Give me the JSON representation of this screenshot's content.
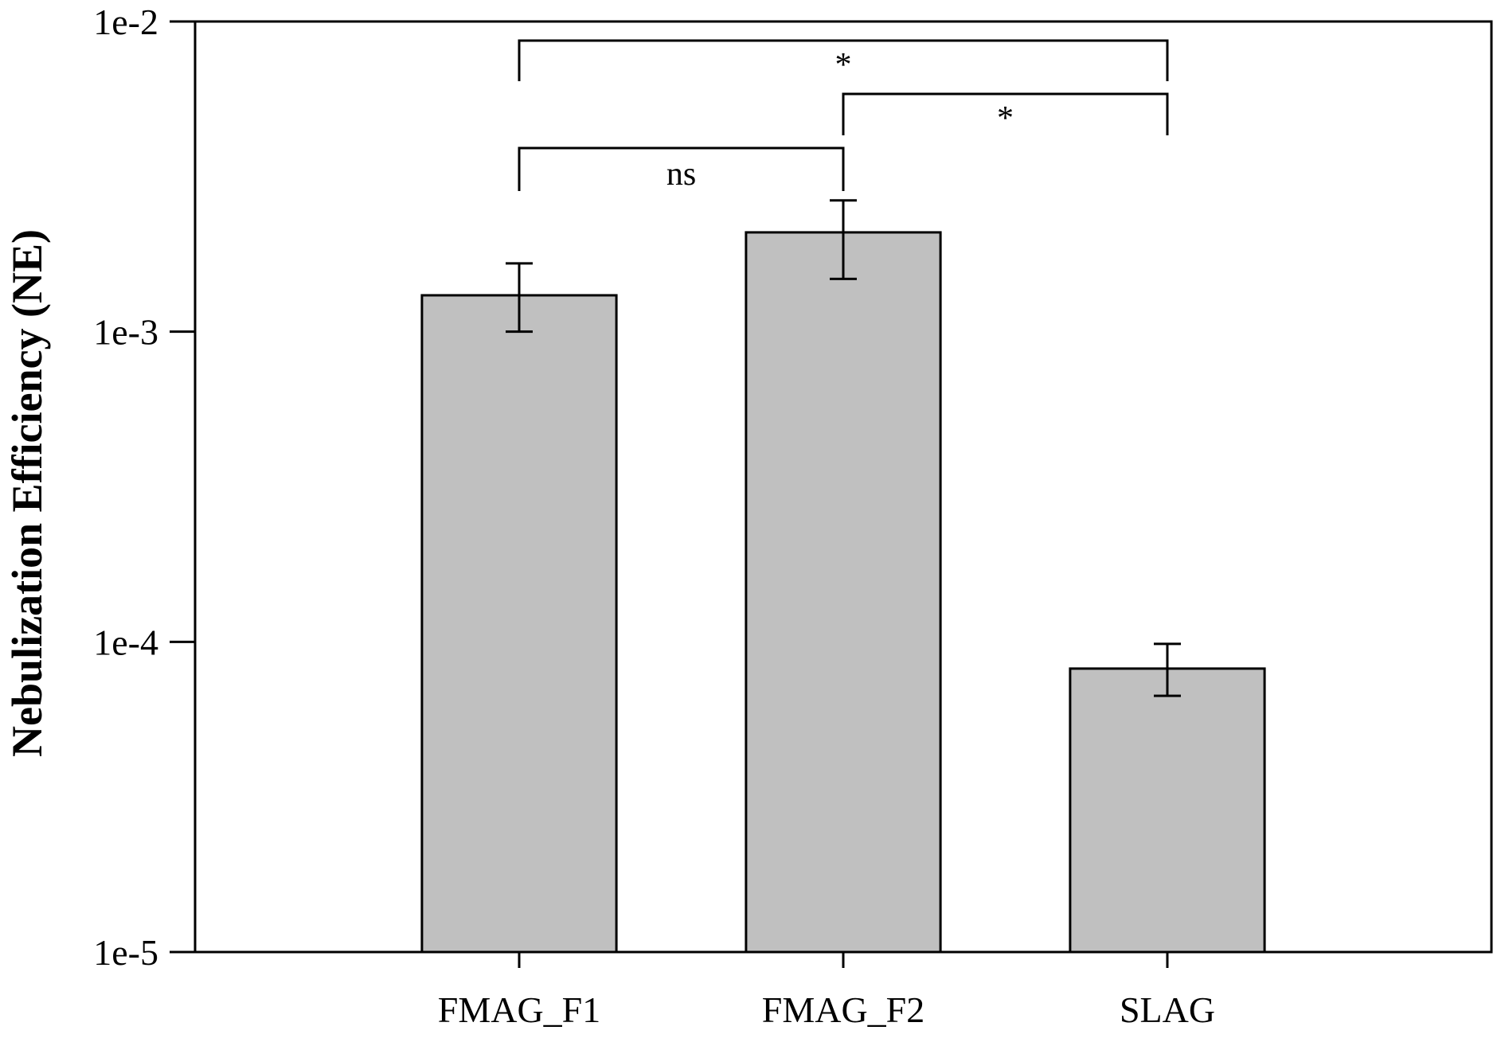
{
  "chart_data": {
    "type": "bar",
    "title": "",
    "xlabel": "",
    "ylabel": "Nebulization Efficiency (NE)",
    "yscale": "log",
    "ylim": [
      1e-05,
      0.01
    ],
    "yticks": [
      1e-05,
      0.0001,
      0.001,
      0.01
    ],
    "ytick_labels": [
      "1e-5",
      "1e-4",
      "1e-3",
      "1e-2"
    ],
    "categories": [
      "FMAG_F1",
      "FMAG_F2",
      "SLAG"
    ],
    "values": [
      0.00131,
      0.00209,
      8.2e-05
    ],
    "error_low": [
      0.001,
      0.00148,
      6.7e-05
    ],
    "error_high": [
      0.00166,
      0.00265,
      9.85e-05
    ],
    "bar_color": "#c0c0c0",
    "grid": false,
    "annotations": [
      {
        "from": "FMAG_F1",
        "to": "SLAG",
        "label": "*",
        "level": 3
      },
      {
        "from": "FMAG_F2",
        "to": "SLAG",
        "label": "*",
        "level": 2
      },
      {
        "from": "FMAG_F1",
        "to": "FMAG_F2",
        "label": "ns",
        "level": 1
      }
    ]
  }
}
